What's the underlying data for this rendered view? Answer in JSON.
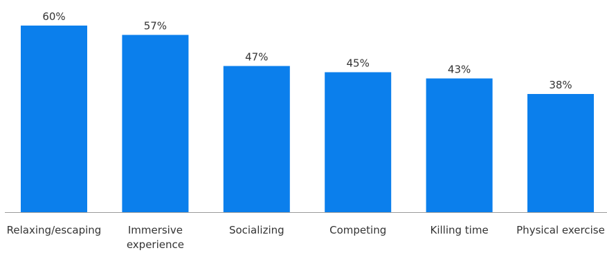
{
  "chart_data": {
    "type": "bar",
    "categories": [
      [
        "Relaxing/escaping"
      ],
      [
        "Immersive",
        "experience"
      ],
      [
        "Socializing"
      ],
      [
        "Competing"
      ],
      [
        "Killing time"
      ],
      [
        "Physical exercise"
      ]
    ],
    "values": [
      60,
      57,
      47,
      45,
      43,
      38
    ],
    "value_labels": [
      "60%",
      "57%",
      "47%",
      "45%",
      "43%",
      "38%"
    ],
    "ylim": [
      0,
      60
    ],
    "grid": false,
    "legend": "none",
    "colors": {
      "bar": "#0b7fec",
      "axis": "#9a9a9a",
      "text": "#333333"
    }
  }
}
